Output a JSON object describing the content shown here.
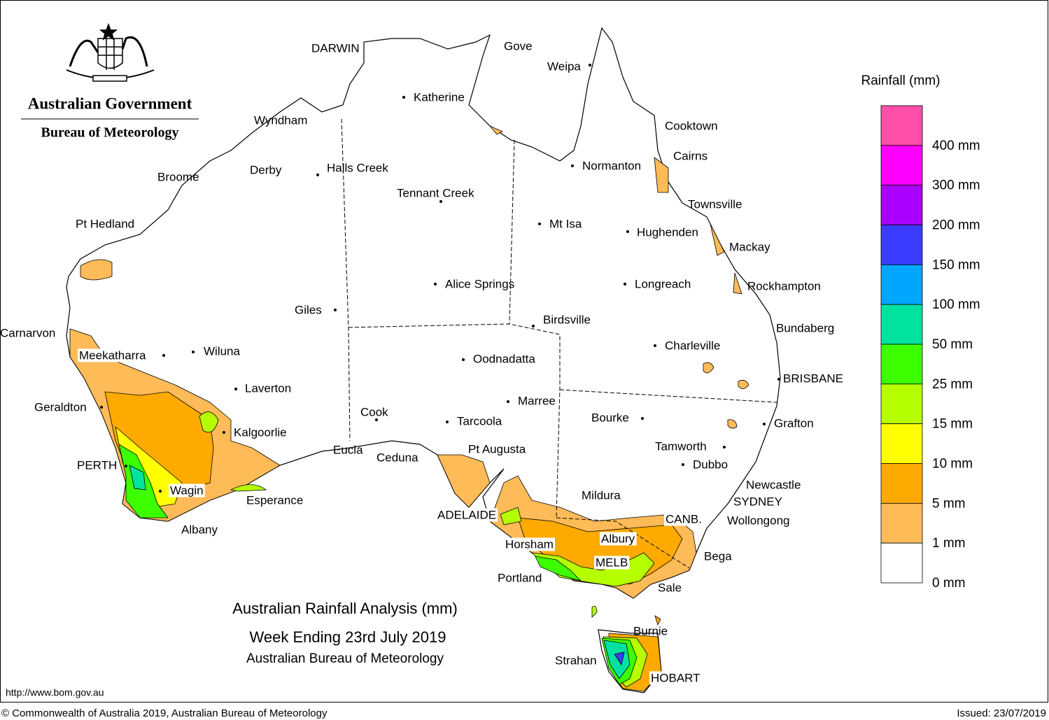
{
  "header": {
    "government": "Australian Government",
    "bureau": "Bureau of Meteorology"
  },
  "map": {
    "title": "Australian Rainfall Analysis (mm)",
    "subtitle": "Week Ending 23rd July 2019",
    "source": "Australian Bureau of Meteorology",
    "places": [
      "DARWIN",
      "Gove",
      "Weipa",
      "Katherine",
      "Cooktown",
      "Wyndham",
      "Cairns",
      "Normanton",
      "Derby",
      "Halls Creek",
      "Broome",
      "Tennant Creek",
      "Townsville",
      "Pt Hedland",
      "Mt Isa",
      "Hughenden",
      "Mackay",
      "Alice Springs",
      "Longreach",
      "Rockhampton",
      "Giles",
      "Birdsville",
      "Bundaberg",
      "Carnarvon",
      "Charleville",
      "Meekatharra",
      "Wiluna",
      "Oodnadatta",
      "BRISBANE",
      "Laverton",
      "Marree",
      "Geraldton",
      "Cook",
      "Bourke",
      "Tarcoola",
      "Grafton",
      "Kalgoorlie",
      "Tamworth",
      "Eucla",
      "Pt Augusta",
      "Ceduna",
      "Dubbo",
      "PERTH",
      "Newcastle",
      "Wagin",
      "Mildura",
      "Esperance",
      "SYDNEY",
      "ADELAIDE",
      "CANB.",
      "Wollongong",
      "Albany",
      "Albury",
      "Horsham",
      "Bega",
      "MELB",
      "Portland",
      "Sale",
      "Burnie",
      "Strahan",
      "HOBART"
    ]
  },
  "legend": {
    "title": "Rainfall (mm)",
    "colors": [
      "#ff4fa8",
      "#ff00ff",
      "#aa00ff",
      "#3c3cff",
      "#00a6ff",
      "#00e3a0",
      "#3cff00",
      "#b6ff00",
      "#ffff00",
      "#ffaa00",
      "#ffbb58",
      "#ffffff"
    ],
    "labels": [
      "400 mm",
      "300 mm",
      "200 mm",
      "150 mm",
      "100 mm",
      "50 mm",
      "25 mm",
      "15 mm",
      "10 mm",
      "5 mm",
      "1 mm",
      "0 mm"
    ]
  },
  "footer": {
    "url": "http://www.bom.gov.au",
    "copyright": "© Commonwealth of Australia 2019, Australian Bureau of Meteorology",
    "issued": "Issued: 23/07/2019"
  }
}
